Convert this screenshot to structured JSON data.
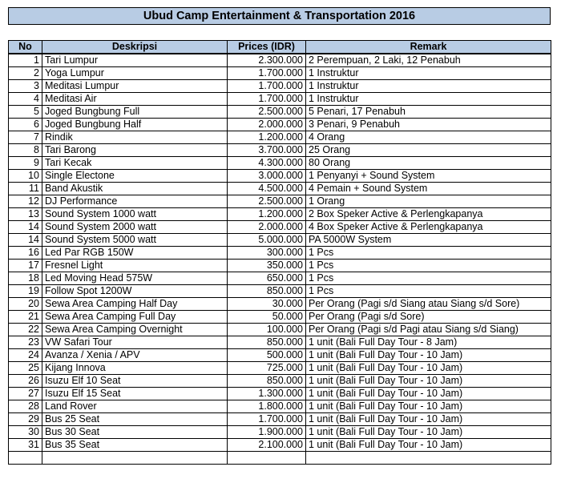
{
  "title": "Ubud Camp Entertainment & Transportation 2016",
  "headers": {
    "no": "No",
    "desc": "Deskripsi",
    "price": "Prices (IDR)",
    "remark": "Remark"
  },
  "rows": [
    {
      "no": "1",
      "desc": "Tari Lumpur",
      "price": "2.300.000",
      "remark": "2 Perempuan, 2 Laki, 12 Penabuh"
    },
    {
      "no": "2",
      "desc": "Yoga Lumpur",
      "price": "1.700.000",
      "remark": "1 Instruktur"
    },
    {
      "no": "3",
      "desc": "Meditasi Lumpur",
      "price": "1.700.000",
      "remark": "1 Instruktur"
    },
    {
      "no": "4",
      "desc": "Meditasi Air",
      "price": "1.700.000",
      "remark": "1 Instruktur"
    },
    {
      "no": "5",
      "desc": "Joged Bungbung Full",
      "price": "2.500.000",
      "remark": "5 Penari, 17 Penabuh"
    },
    {
      "no": "6",
      "desc": "Joged Bungbung Half",
      "price": "2.000.000",
      "remark": "3 Penari, 9 Penabuh"
    },
    {
      "no": "7",
      "desc": "Rindik",
      "price": "1.200.000",
      "remark": "4 Orang"
    },
    {
      "no": "8",
      "desc": "Tari Barong",
      "price": "3.700.000",
      "remark": "25 Orang"
    },
    {
      "no": "9",
      "desc": "Tari Kecak",
      "price": "4.300.000",
      "remark": "80 Orang"
    },
    {
      "no": "10",
      "desc": "Single Electone",
      "price": "3.000.000",
      "remark": "1 Penyanyi + Sound System"
    },
    {
      "no": "11",
      "desc": "Band Akustik",
      "price": "4.500.000",
      "remark": "4 Pemain + Sound System"
    },
    {
      "no": "12",
      "desc": "DJ Performance",
      "price": "2.500.000",
      "remark": "1 Orang"
    },
    {
      "no": "13",
      "desc": "Sound System 1000 watt",
      "price": "1.200.000",
      "remark": "2 Box Speker Active & Perlengkapanya"
    },
    {
      "no": "14",
      "desc": "Sound System 2000 watt",
      "price": "2.000.000",
      "remark": "4 Box Speker Active & Perlengkapanya"
    },
    {
      "no": "14",
      "desc": "Sound System 5000 watt",
      "price": "5.000.000",
      "remark": "PA 5000W System"
    },
    {
      "no": "16",
      "desc": "Led Par RGB 150W",
      "price": "300.000",
      "remark": "1 Pcs"
    },
    {
      "no": "17",
      "desc": "Fresnel Light",
      "price": "350.000",
      "remark": "1 Pcs"
    },
    {
      "no": "18",
      "desc": "Led Moving Head 575W",
      "price": "650.000",
      "remark": "1 Pcs"
    },
    {
      "no": "19",
      "desc": "Follow Spot 1200W",
      "price": "850.000",
      "remark": "1 Pcs"
    },
    {
      "no": "20",
      "desc": "Sewa Area Camping Half Day",
      "price": "30.000",
      "remark": "Per Orang (Pagi s/d Siang atau Siang s/d Sore)"
    },
    {
      "no": "21",
      "desc": "Sewa Area Camping Full Day",
      "price": "50.000",
      "remark": "Per Orang (Pagi s/d Sore)"
    },
    {
      "no": "22",
      "desc": "Sewa Area Camping Overnight",
      "price": "100.000",
      "remark": "Per Orang (Pagi s/d Pagi atau Siang s/d Siang)"
    },
    {
      "no": "23",
      "desc": "VW Safari Tour",
      "price": "850.000",
      "remark": "1 unit (Bali Full Day Tour - 8 Jam)"
    },
    {
      "no": "24",
      "desc": "Avanza / Xenia / APV",
      "price": "500.000",
      "remark": "1 unit (Bali Full Day Tour - 10 Jam)"
    },
    {
      "no": "25",
      "desc": "Kijang Innova",
      "price": "725.000",
      "remark": "1 unit (Bali Full Day Tour - 10 Jam)"
    },
    {
      "no": "26",
      "desc": "Isuzu Elf 10 Seat",
      "price": "850.000",
      "remark": "1 unit (Bali Full Day Tour - 10 Jam)"
    },
    {
      "no": "27",
      "desc": "Isuzu Elf 15 Seat",
      "price": "1.300.000",
      "remark": "1 unit (Bali Full Day Tour - 10 Jam)"
    },
    {
      "no": "28",
      "desc": "Land Rover",
      "price": "1.800.000",
      "remark": "1 unit (Bali Full Day Tour - 10 Jam)"
    },
    {
      "no": "29",
      "desc": "Bus 25 Seat",
      "price": "1.700.000",
      "remark": "1 unit (Bali Full Day Tour - 10 Jam)"
    },
    {
      "no": "30",
      "desc": "Bus 30 Seat",
      "price": "1.900.000",
      "remark": "1 unit (Bali Full Day Tour - 10 Jam)"
    },
    {
      "no": "31",
      "desc": "Bus 35 Seat",
      "price": "2.100.000",
      "remark": "1 unit (Bali Full Day Tour - 10 Jam)"
    },
    {
      "no": "",
      "desc": "",
      "price": "",
      "remark": ""
    }
  ]
}
